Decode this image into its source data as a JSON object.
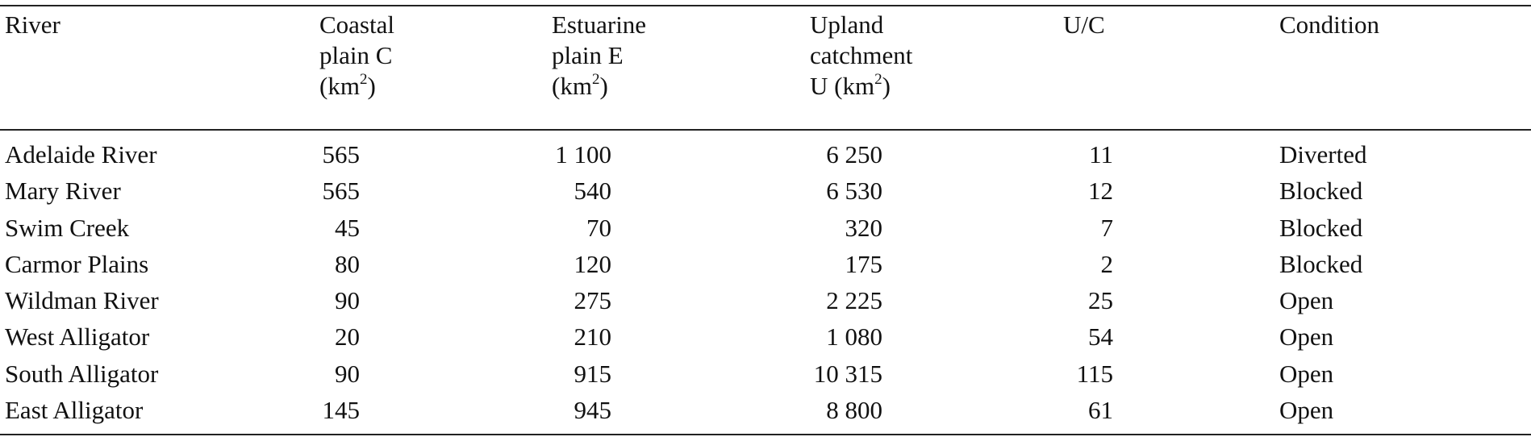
{
  "table": {
    "headers": {
      "river": [
        "River"
      ],
      "coastal": [
        "Coastal",
        "plain C",
        "(km",
        ")"
      ],
      "estuarine": [
        "Estuarine",
        "plain E",
        "(km",
        ")"
      ],
      "upland": [
        "Upland",
        "catchment",
        "U (km",
        ")"
      ],
      "uc": [
        "U/C"
      ],
      "condition": [
        "Condition"
      ],
      "unit_exponent": "2"
    },
    "rows": [
      {
        "river": "Adelaide River",
        "coastal": "565",
        "estuarine": "1 100",
        "upland": "6 250",
        "uc": "11",
        "condition": "Diverted"
      },
      {
        "river": "Mary River",
        "coastal": "565",
        "estuarine": "540",
        "upland": "6 530",
        "uc": "12",
        "condition": "Blocked"
      },
      {
        "river": "Swim Creek",
        "coastal": "45",
        "estuarine": "70",
        "upland": "320",
        "uc": "7",
        "condition": "Blocked"
      },
      {
        "river": "Carmor Plains",
        "coastal": "80",
        "estuarine": "120",
        "upland": "175",
        "uc": "2",
        "condition": "Blocked"
      },
      {
        "river": "Wildman River",
        "coastal": "90",
        "estuarine": "275",
        "upland": "2 225",
        "uc": "25",
        "condition": "Open"
      },
      {
        "river": "West Alligator",
        "coastal": "20",
        "estuarine": "210",
        "upland": "1 080",
        "uc": "54",
        "condition": "Open"
      },
      {
        "river": "South Alligator",
        "coastal": "90",
        "estuarine": "915",
        "upland": "10 315",
        "uc": "115",
        "condition": "Open"
      },
      {
        "river": "East Alligator",
        "coastal": "145",
        "estuarine": "945",
        "upland": "8 800",
        "uc": "61",
        "condition": "Open"
      }
    ]
  }
}
